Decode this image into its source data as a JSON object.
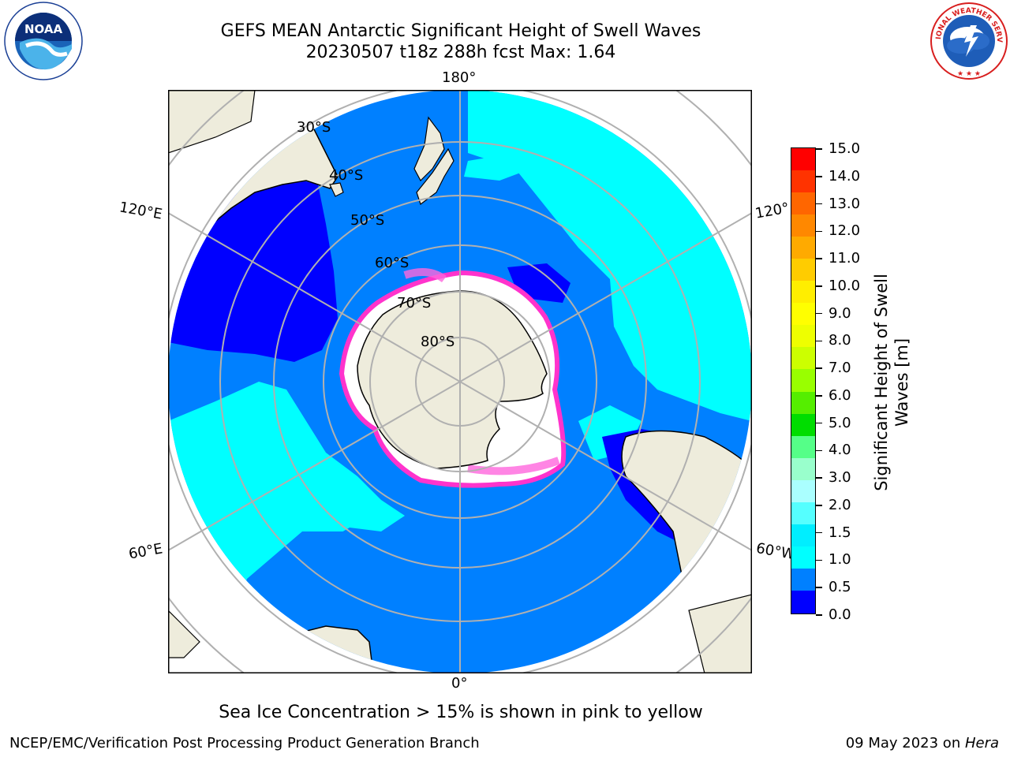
{
  "header": {
    "title_line1": "GEFS MEAN Antarctic Significant Height of Swell Waves",
    "title_line2": "20230507 t18z 288h fcst   Max: 1.64"
  },
  "logos": {
    "left": {
      "text": "NOAA",
      "ring_text": "NATIONAL OCEANIC AND ATMOSPHERIC ADMINISTRATION · U.S. DEPARTMENT OF COMMERCE"
    },
    "right": {
      "ring_text": "NATIONAL WEATHER SERVICE"
    }
  },
  "map": {
    "longitude_labels": {
      "top": "180°",
      "bottom": "0°",
      "upper_left": "120°E",
      "lower_left": "60°E",
      "upper_right": "120°",
      "lower_right": "60°W"
    },
    "latitude_labels": [
      "30°S",
      "40°S",
      "50°S",
      "60°S",
      "70°S",
      "80°S"
    ],
    "colors": {
      "ocean_deep_blue": "#0000ff",
      "ocean_blue": "#0080ff",
      "ocean_cyan": "#00ffff",
      "land": "#eeecdc",
      "sea_ice": "#ffffff",
      "ice_edge": "#ff33cc",
      "grid": "#b0b0b0"
    }
  },
  "colorbar": {
    "title_line1": "Significant Height of Swell",
    "title_line2": "Waves [m]",
    "ticks": [
      "15.0",
      "14.0",
      "13.0",
      "12.0",
      "11.0",
      "10.0",
      "9.0",
      "8.0",
      "7.0",
      "6.0",
      "5.0",
      "4.0",
      "3.0",
      "2.0",
      "1.5",
      "1.0",
      "0.5",
      "0.0"
    ],
    "colors_top_to_bottom": [
      "#ff0000",
      "#ff3300",
      "#ff6600",
      "#ff8800",
      "#ffaa00",
      "#ffcc00",
      "#ffee00",
      "#ffff00",
      "#eeff00",
      "#ccff00",
      "#99ff00",
      "#55ee00",
      "#00dd00",
      "#55ff88",
      "#99ffcc",
      "#aaffff",
      "#55ffff",
      "#00eeff",
      "#00ffff",
      "#0080ff",
      "#0000ff"
    ]
  },
  "caption": "Sea Ice Concentration > 15% is shown in pink to yellow",
  "footer": {
    "left": "NCEP/EMC/Verification Post Processing Product Generation Branch",
    "right_date": "09 May 2023 on ",
    "right_host": "Hera"
  }
}
